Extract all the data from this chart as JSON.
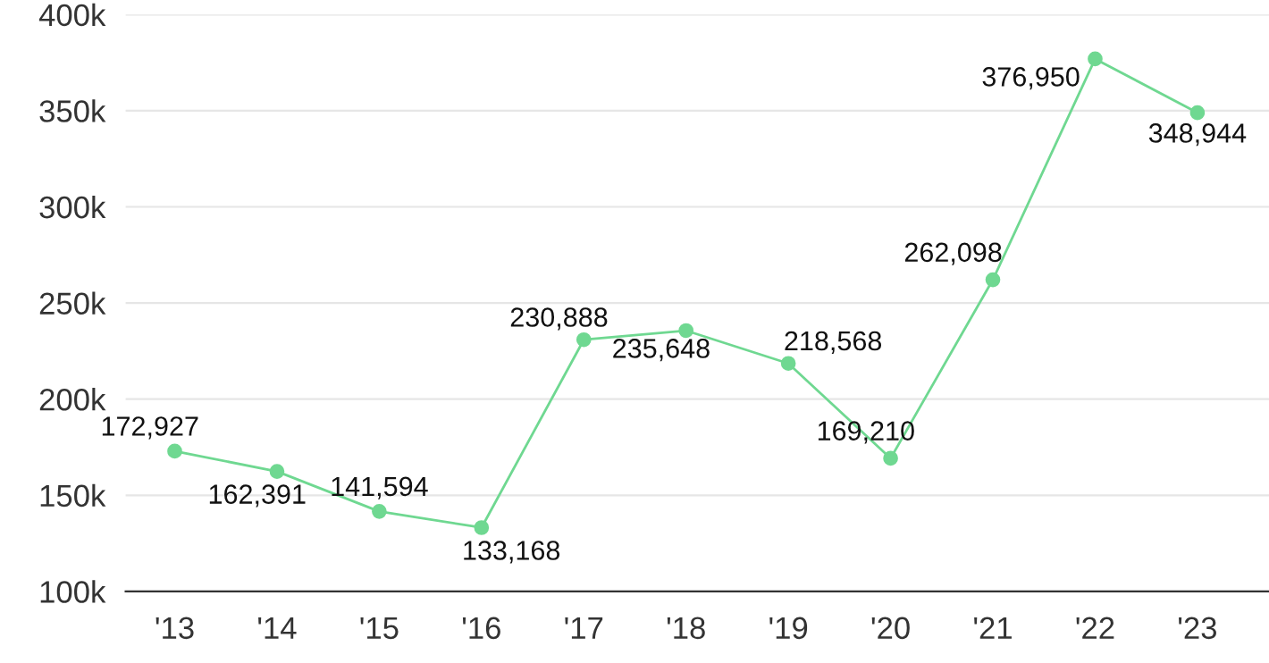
{
  "chart_data": {
    "type": "line",
    "categories": [
      "'13",
      "'14",
      "'15",
      "'16",
      "'17",
      "'18",
      "'19",
      "'20",
      "'21",
      "'22",
      "'23"
    ],
    "series": [
      {
        "color": "#6fd891",
        "values": [
          172927,
          162391,
          141594,
          133168,
          230888,
          235648,
          218568,
          169210,
          262098,
          376950,
          348944
        ]
      }
    ],
    "ylim": [
      100000,
      400000
    ],
    "yticks": [
      {
        "value": 100000,
        "label": "100k"
      },
      {
        "value": 150000,
        "label": "150k"
      },
      {
        "value": 200000,
        "label": "200k"
      },
      {
        "value": 250000,
        "label": "250k"
      },
      {
        "value": 300000,
        "label": "300k"
      },
      {
        "value": 350000,
        "label": "350k"
      },
      {
        "value": 400000,
        "label": "400k"
      }
    ],
    "value_labels": [
      "172,927",
      "162,391",
      "141,594",
      "133,168",
      "230,888",
      "235,648",
      "218,568",
      "169,210",
      "262,098",
      "376,950",
      "348,944"
    ],
    "grid": "y",
    "marker": "circle",
    "line_style": "solid",
    "legend": false
  }
}
